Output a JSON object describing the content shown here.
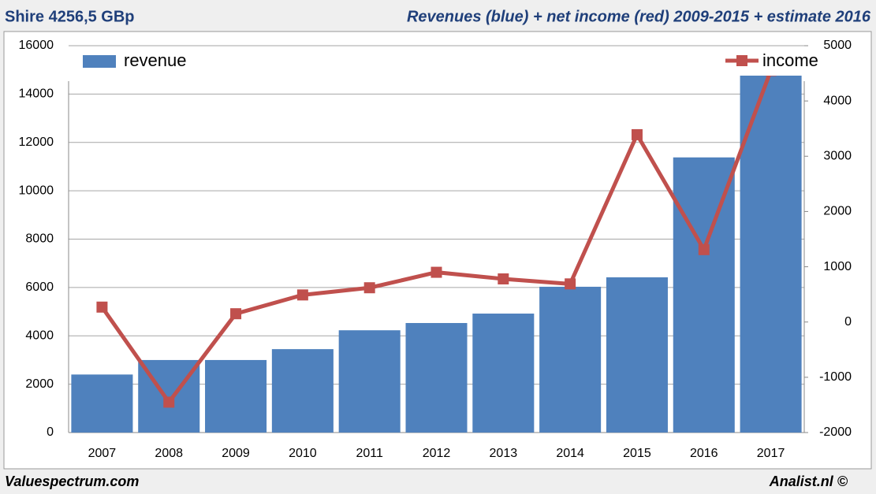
{
  "chart_data": {
    "type": "bar",
    "title": "Shire 4256,5 GBp",
    "subtitle": "Revenues (blue) + net income (red) 2009-2015 + estimate 2016",
    "footer_left": "Valuespectrum.com",
    "footer_right": "Analist.nl ©",
    "categories": [
      "2007",
      "2008",
      "2009",
      "2010",
      "2011",
      "2012",
      "2013",
      "2014",
      "2015",
      "2016",
      "2017"
    ],
    "series": [
      {
        "name": "revenue",
        "type": "bar",
        "color": "#4f81bd",
        "values": [
          2400,
          3000,
          3000,
          3450,
          4230,
          4530,
          4920,
          6030,
          6420,
          11380,
          14900
        ]
      },
      {
        "name": "income",
        "type": "line",
        "axis": "y2",
        "color": "#c0504d",
        "values": [
          270,
          -1450,
          150,
          490,
          620,
          900,
          780,
          690,
          3390,
          1310,
          4550
        ]
      }
    ],
    "ylim": [
      0,
      16000
    ],
    "yticks": [
      0,
      2000,
      4000,
      6000,
      8000,
      10000,
      12000,
      14000,
      16000
    ],
    "y2lim": [
      -2000,
      5000
    ],
    "y2ticks": [
      -2000,
      -1000,
      0,
      1000,
      2000,
      3000,
      4000,
      5000
    ],
    "grid": true
  }
}
